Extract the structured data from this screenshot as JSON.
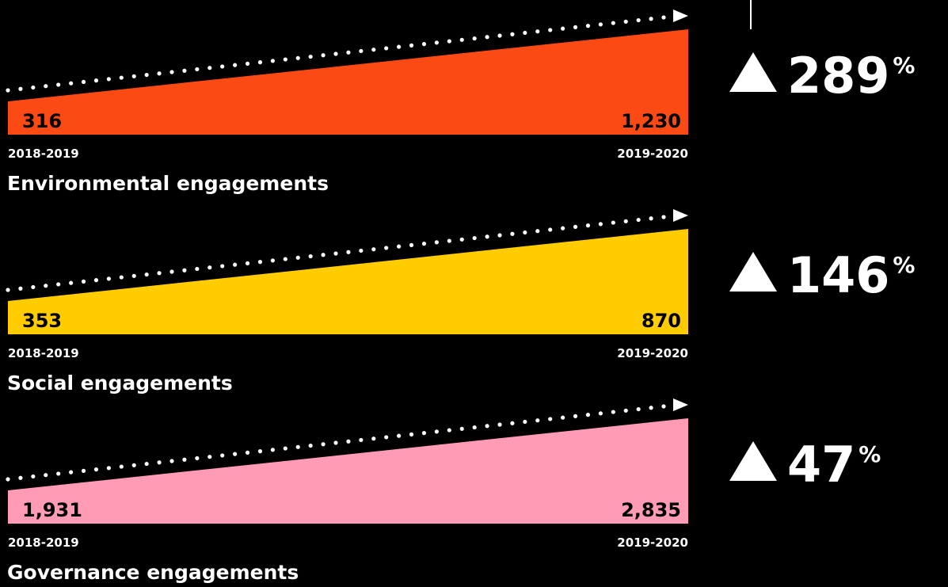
{
  "panels": [
    {
      "title": "Environmental engagements",
      "start_period": "2018-2019",
      "end_period": "2019-2020",
      "start_value": "316",
      "end_value": "1,230",
      "increase": "289",
      "unit": "%",
      "color": "#fc4a14"
    },
    {
      "title": "Social engagements",
      "start_period": "2018-2019",
      "end_period": "2019-2020",
      "start_value": "353",
      "end_value": "870",
      "increase": "146",
      "unit": "%",
      "color": "#ffcc00"
    },
    {
      "title": "Governance engagements",
      "start_period": "2018-2019",
      "end_period": "2019-2020",
      "start_value": "1,931",
      "end_value": "2,835",
      "increase": "47",
      "unit": "%",
      "color": "#ff9bb5"
    }
  ]
}
